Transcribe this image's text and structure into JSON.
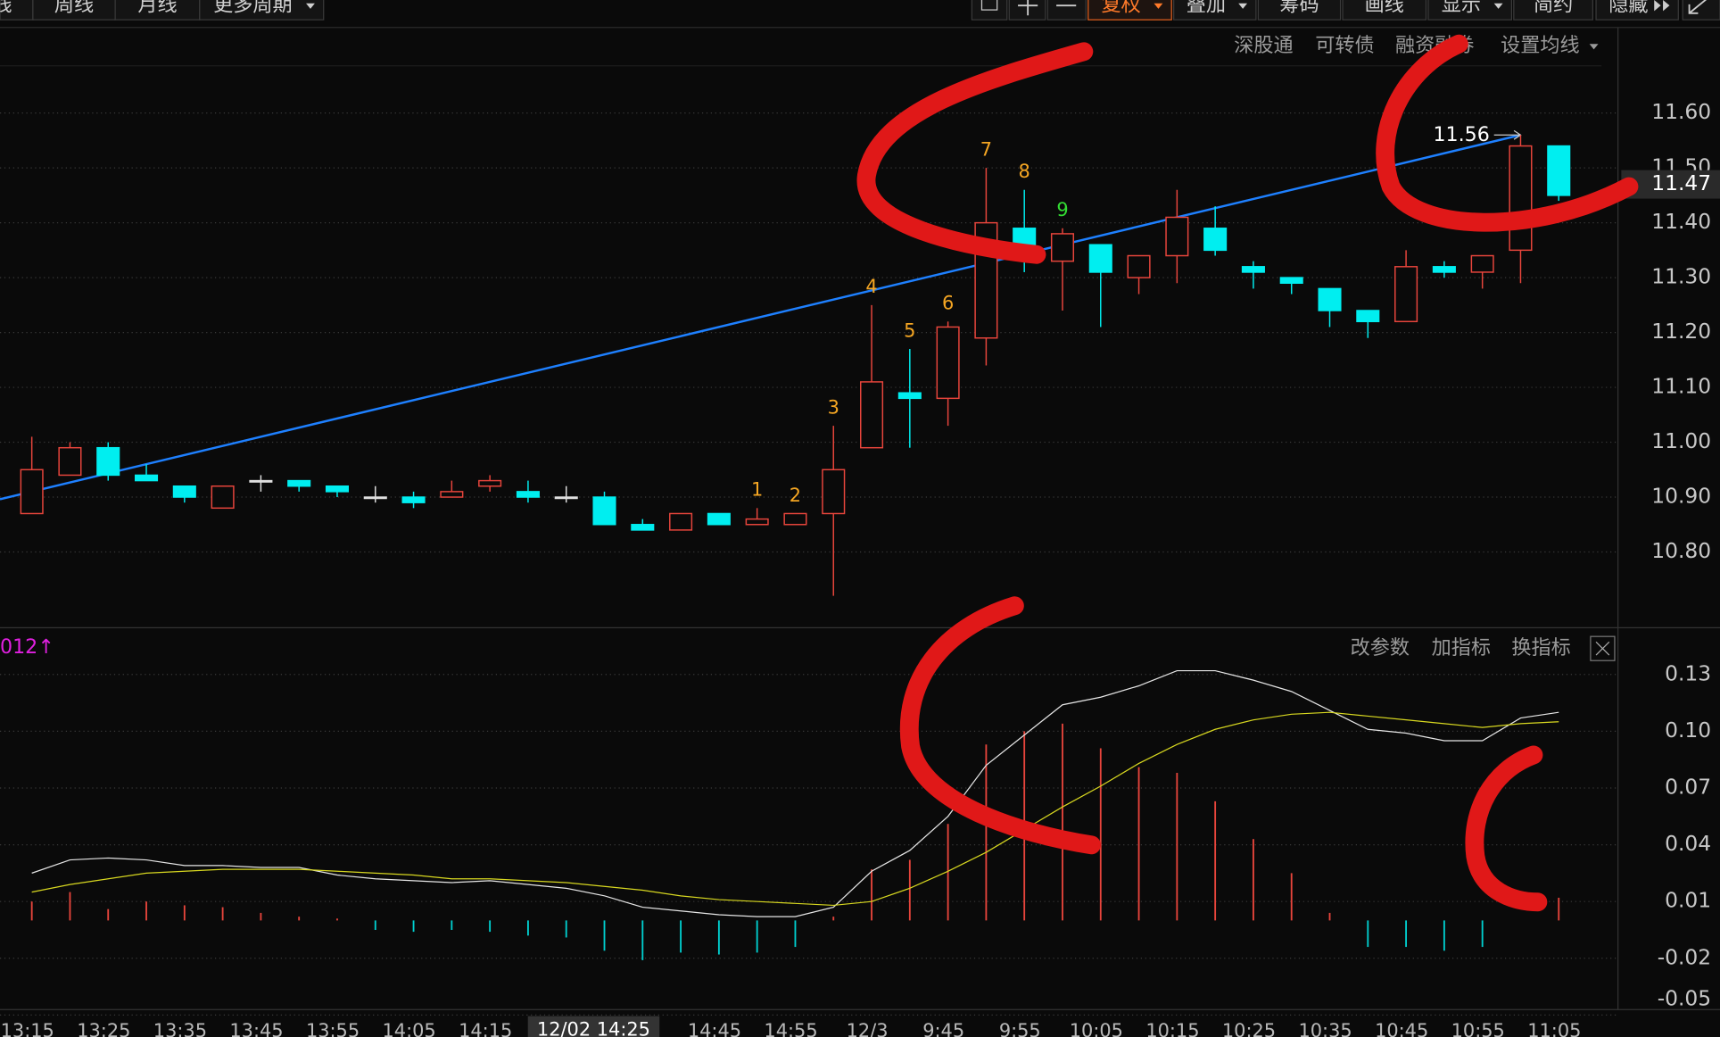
{
  "toolbar": {
    "left": [
      "线",
      "周线",
      "月线",
      "更多周期"
    ],
    "right": [
      "复权",
      "叠加",
      "筹码",
      "画线",
      "显示",
      "简约",
      "隐藏"
    ]
  },
  "price_panel_buttons": [
    "深股通",
    "可转债",
    "融资融券",
    "设置均线"
  ],
  "indicator_buttons": [
    "改参数",
    "加指标",
    "换指标"
  ],
  "chart_data": [
    {
      "type": "candlestick",
      "categories": [
        "13:15",
        null,
        "13:25",
        null,
        "13:35",
        null,
        "13:45",
        null,
        "13:55",
        null,
        "14:05",
        null,
        "14:15",
        null,
        null,
        null,
        null,
        null,
        "14:45",
        null,
        "14:55",
        null,
        "12/3",
        null,
        "9:45",
        null,
        "9:55",
        null,
        "10:05",
        null,
        "10:15",
        null,
        "10:25",
        null,
        "10:35",
        null,
        "10:45",
        null,
        "10:55",
        null,
        "11:05"
      ],
      "open": [
        10.87,
        10.94,
        10.99,
        10.94,
        10.92,
        10.88,
        10.93,
        10.93,
        10.92,
        10.9,
        10.9,
        10.9,
        10.92,
        10.91,
        10.9,
        10.9,
        10.85,
        10.84,
        10.87,
        10.85,
        10.85,
        10.87,
        10.99,
        11.09,
        11.08,
        11.19,
        11.39,
        11.33,
        11.36,
        11.3,
        11.34,
        11.39,
        11.32,
        11.3,
        11.28,
        11.24,
        11.22,
        11.32,
        11.31,
        11.35,
        11.54
      ],
      "high": [
        11.01,
        11.0,
        11.0,
        10.96,
        10.92,
        10.92,
        10.94,
        10.93,
        10.92,
        10.92,
        10.91,
        10.93,
        10.94,
        10.93,
        10.92,
        10.91,
        10.86,
        10.87,
        10.87,
        10.88,
        10.87,
        11.03,
        11.25,
        11.17,
        11.22,
        11.5,
        11.46,
        11.39,
        11.36,
        11.34,
        11.46,
        11.43,
        11.33,
        11.3,
        11.28,
        11.24,
        11.35,
        11.33,
        11.34,
        11.56,
        11.54
      ],
      "low": [
        10.87,
        10.94,
        10.93,
        10.93,
        10.89,
        10.88,
        10.91,
        10.91,
        10.9,
        10.89,
        10.88,
        10.9,
        10.91,
        10.89,
        10.89,
        10.85,
        10.84,
        10.84,
        10.85,
        10.85,
        10.85,
        10.72,
        10.99,
        10.99,
        11.03,
        11.14,
        11.31,
        11.24,
        11.21,
        11.27,
        11.29,
        11.34,
        11.28,
        11.27,
        11.21,
        11.19,
        11.22,
        11.3,
        11.28,
        11.29,
        11.44
      ],
      "close": [
        10.95,
        10.99,
        10.94,
        10.93,
        10.9,
        10.92,
        10.93,
        10.92,
        10.91,
        10.9,
        10.89,
        10.91,
        10.93,
        10.9,
        10.9,
        10.85,
        10.84,
        10.87,
        10.85,
        10.86,
        10.87,
        10.95,
        11.11,
        11.08,
        11.21,
        11.4,
        11.36,
        11.38,
        11.31,
        11.34,
        11.41,
        11.35,
        11.31,
        11.29,
        11.24,
        11.22,
        11.32,
        11.31,
        11.34,
        11.54,
        11.45
      ],
      "up_color": "#e8453c",
      "down_color": "#00eef0",
      "flat_color": "#e0e0e0",
      "ylim": [
        10.67,
        11.75
      ],
      "yticks": [
        {
          "value": 11.6,
          "label": "11.60"
        },
        {
          "value": 11.5,
          "label": "11.50"
        },
        {
          "value": 11.4,
          "label": "11.40"
        },
        {
          "value": 11.3,
          "label": "11.30"
        },
        {
          "value": 11.2,
          "label": "11.20"
        },
        {
          "value": 11.1,
          "label": "11.10"
        },
        {
          "value": 11.0,
          "label": "11.00"
        },
        {
          "value": 10.9,
          "label": "10.90"
        },
        {
          "value": 10.8,
          "label": "10.80"
        }
      ],
      "grid": true,
      "trendline": {
        "start": 10.91,
        "end": 11.56,
        "color": "#1e80ff"
      },
      "last_price": 11.47,
      "sequence": [
        null,
        null,
        null,
        null,
        null,
        null,
        null,
        null,
        null,
        null,
        null,
        null,
        null,
        null,
        null,
        null,
        null,
        null,
        null,
        1,
        2,
        3,
        4,
        5,
        6,
        7,
        8,
        9,
        null,
        null,
        null,
        null,
        null,
        null,
        null,
        null,
        null,
        null,
        null,
        null,
        null
      ],
      "sequence_color": "#f5a623",
      "sequence_last_color": "#33dd33",
      "crosshair_label": "12/02 14:25"
    },
    {
      "type": "macd",
      "label": "012↑",
      "label_color": "#e020e0",
      "ylim": [
        -0.05,
        0.153
      ],
      "yticks": [
        0.13,
        {
          "value": 0.1,
          "label": "0.10"
        },
        0.07,
        0.04,
        0.01,
        -0.02,
        -0.05
      ],
      "grid": true,
      "histogram": {
        "up_color": "#e8453c",
        "down_color": "#00d0d0",
        "values": [
          0.01,
          0.015,
          0.006,
          0.01,
          0.008,
          0.007,
          0.004,
          0.002,
          0.001,
          -0.005,
          -0.006,
          -0.005,
          -0.006,
          -0.008,
          -0.009,
          -0.016,
          -0.021,
          -0.017,
          -0.018,
          -0.017,
          -0.014,
          0.002,
          0.027,
          0.032,
          0.051,
          0.093,
          0.1,
          0.104,
          0.091,
          0.081,
          0.078,
          0.063,
          0.043,
          0.025,
          0.004,
          -0.014,
          -0.014,
          -0.016,
          -0.014,
          0,
          0.012
        ]
      },
      "series": [
        {
          "color": "#e6e6e6",
          "values": [
            0.025,
            0.032,
            0.033,
            0.032,
            0.029,
            0.029,
            0.028,
            0.028,
            0.024,
            0.022,
            0.021,
            0.02,
            0.021,
            0.019,
            0.017,
            0.013,
            0.007,
            0.005,
            0.003,
            0.002,
            0.002,
            0.007,
            0.026,
            0.037,
            0.055,
            0.082,
            0.098,
            0.114,
            0.118,
            0.124,
            0.132,
            0.132,
            0.127,
            0.121,
            0.111,
            0.101,
            0.099,
            0.095,
            0.095,
            0.107,
            0.11
          ]
        },
        {
          "color": "#d8d820",
          "values": [
            0.015,
            0.019,
            0.022,
            0.025,
            0.026,
            0.027,
            0.027,
            0.027,
            0.026,
            0.025,
            0.024,
            0.022,
            0.022,
            0.021,
            0.02,
            0.018,
            0.016,
            0.013,
            0.011,
            0.01,
            0.009,
            0.008,
            0.01,
            0.017,
            0.026,
            0.036,
            0.048,
            0.06,
            0.071,
            0.083,
            0.093,
            0.101,
            0.106,
            0.109,
            0.11,
            0.108,
            0.106,
            0.104,
            0.102,
            0.104,
            0.105
          ]
        }
      ]
    }
  ]
}
